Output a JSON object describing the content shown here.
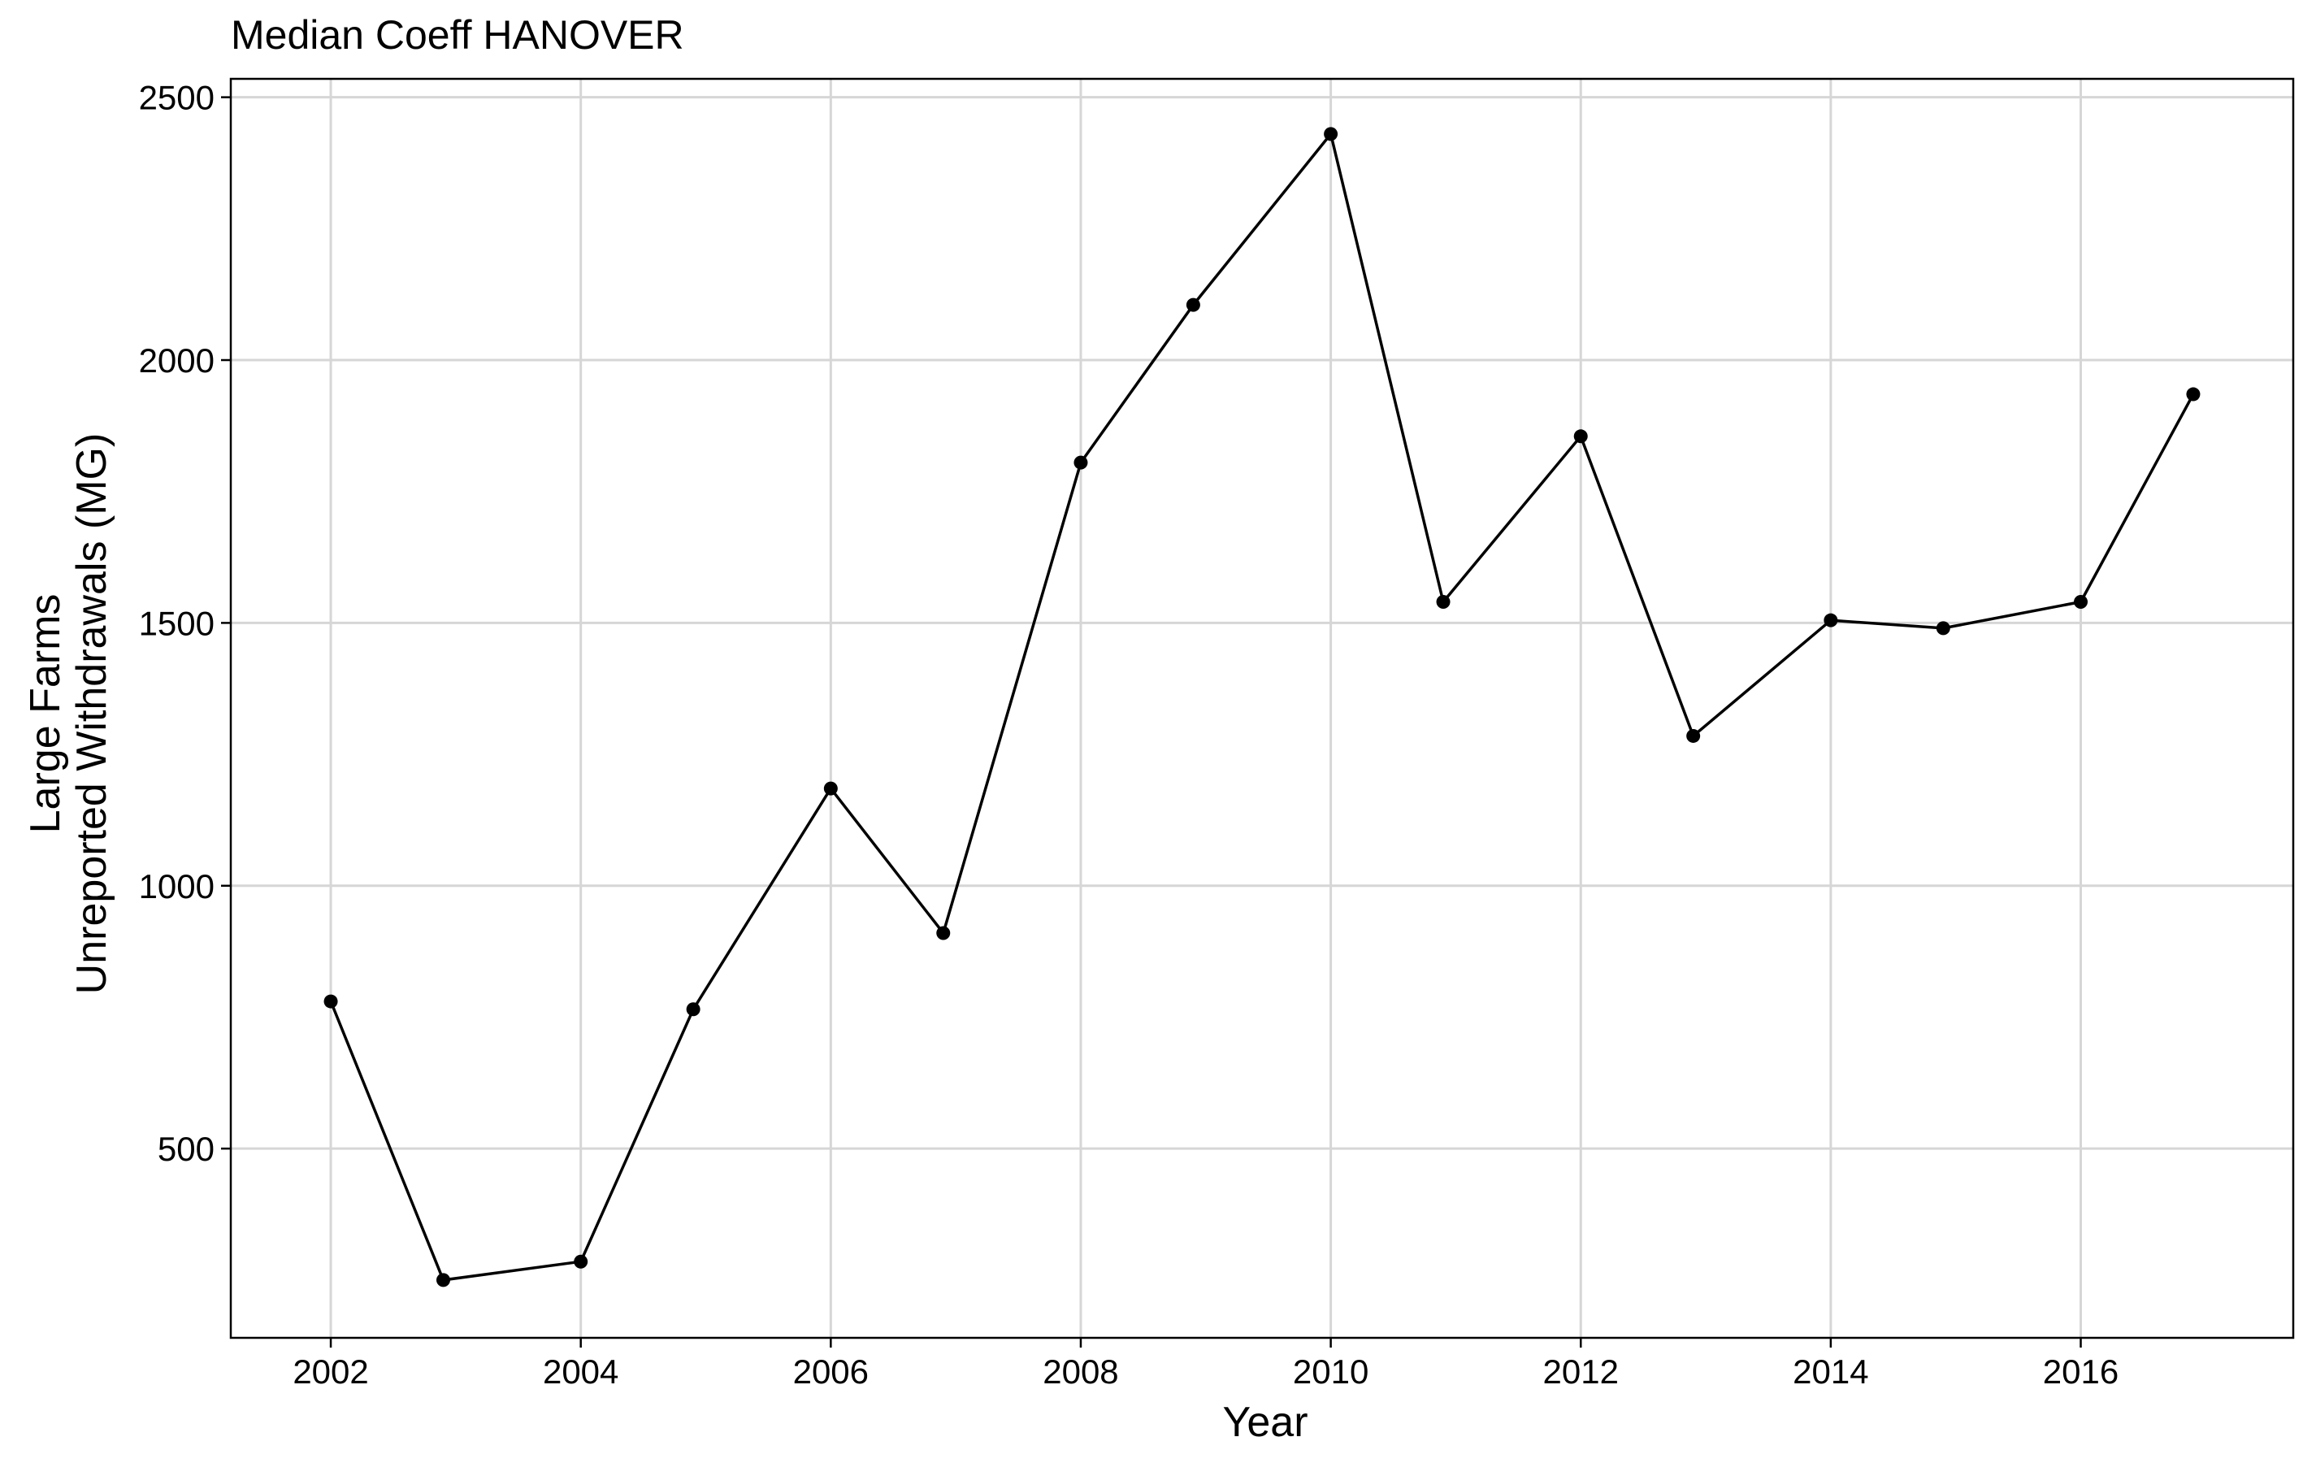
{
  "chart_data": {
    "type": "line",
    "title": "Median Coeff HANOVER",
    "xlabel": "Year",
    "ylabel_lines": [
      "Large Farms",
      "Unreported Withdrawals (MG)"
    ],
    "x_ticks": [
      2002,
      2004,
      2006,
      2008,
      2010,
      2012,
      2014,
      2016
    ],
    "y_ticks": [
      500,
      1000,
      1500,
      2000,
      2500
    ],
    "xlim": [
      2001.2,
      2017.7
    ],
    "ylim": [
      140,
      2535
    ],
    "grid": true,
    "legend": "none",
    "color": "#000000",
    "series": [
      {
        "x": [
          2002,
          2002.9,
          2004,
          2004.9,
          2006,
          2006.9,
          2008,
          2008.9,
          2010,
          2010.9,
          2012,
          2012.9,
          2014,
          2014.9,
          2016,
          2016.9
        ],
        "values": [
          780,
          250,
          285,
          765,
          1185,
          910,
          1805,
          2105,
          2430,
          1540,
          1855,
          1285,
          1505,
          1490,
          1540,
          1935
        ]
      }
    ]
  }
}
